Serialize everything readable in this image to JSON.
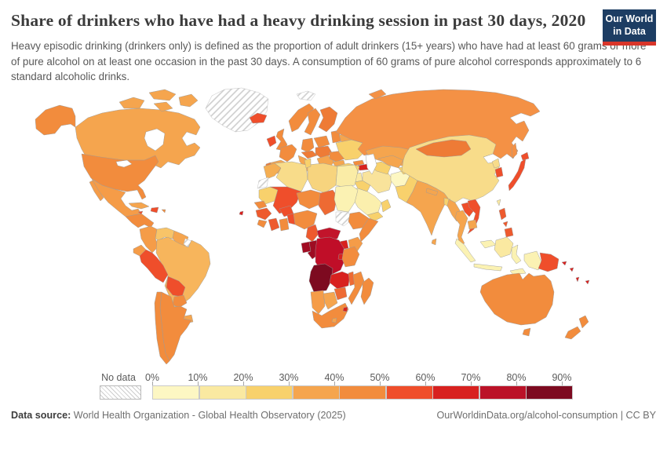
{
  "header": {
    "title": "Share of drinkers who have had a heavy drinking session in past 30 days, 2020",
    "subtitle": "Heavy episodic drinking (drinkers only) is defined as the proportion of adult drinkers (15+ years) who have had at least 60 grams or more of pure alcohol on at least one occasion in the past 30 days. A consumption of 60 grams of pure alcohol corresponds approximately to 6 standard alcoholic drinks.",
    "logo": {
      "line1": "Our World",
      "line2": "in Data",
      "bg_color": "#1d3d63",
      "accent_color": "#d8352a"
    }
  },
  "chart_data": {
    "type": "choropleth_map",
    "title": "Share of drinkers who have had a heavy drinking session in past 30 days",
    "year": "2020",
    "unit": "%",
    "legend": {
      "no_data_label": "No data",
      "tick_labels": [
        "0%",
        "10%",
        "20%",
        "30%",
        "40%",
        "50%",
        "60%",
        "70%",
        "80%",
        "90%"
      ],
      "bin_colors": [
        "#FDF7C3",
        "#FAE9A1",
        "#F8D16C",
        "#F5A54E",
        "#F28C3D",
        "#EF4E2B",
        "#D8211F",
        "#BB1228",
        "#7D0A20"
      ],
      "bin_ranges": [
        "0-10%",
        "10-20%",
        "20-30%",
        "30-40%",
        "40-50%",
        "50-60%",
        "60-70%",
        "70-80%",
        "80-90%"
      ]
    },
    "regions": {
      "greenland": "hatch",
      "svalbard": "hatch",
      "canada": "#F5A54E",
      "alaska": "#F28C3D",
      "usa": "#F28C3D",
      "mexico": "#F59C48",
      "camerica": "#F28C3D",
      "cuba": "#F5A54E",
      "hispaniola": "#EF4E2B",
      "jamaica": "#EF4E2B",
      "puertorico": "#F28C3D",
      "capeverde": "#D8211F",
      "colombia": "#F59C48",
      "venezuela": "#F8C468",
      "guyanas": "#F5A54E",
      "frenchguiana": "hatch",
      "ecuador": "#F59C48",
      "peru": "#EF4E2B",
      "brazil": "#F7B55C",
      "bolivia": "#EF4E2B",
      "paraguay": "#F28C3D",
      "uruguay": "#F5A54E",
      "argentina": "#F28C3D",
      "chile": "#F28C3D",
      "iceland": "#EF4E2B",
      "ireland": "#EF4E2B",
      "uk": "#F28C3D",
      "norway": "#F28C3D",
      "sweden": "#F28C3D",
      "finland": "#EE7B36",
      "denmark": "#F28C3D",
      "baltics": "#F28C3D",
      "belarus": "#F5A54E",
      "poland": "#F28C3D",
      "germany": "#F28C3D",
      "france": "#F28C3D",
      "spain": "#F5A54E",
      "portugal": "#EE7B36",
      "italy": "#F5A54E",
      "switzaustria": "#EE7B36",
      "czechhungary": "#EE7B36",
      "balkans": "#F5A54E",
      "greece": "#F8D16C",
      "romania": "#F28C3D",
      "bulgaria": "#F5A54E",
      "ukraine": "#F8D16C",
      "russia": "#F49145",
      "kazakhstan": "#F5A54E",
      "georgia": "#F28C3D",
      "azerbaijan": "#D8211F",
      "armenia": "#F5A54E",
      "turkey": "#F8D16C",
      "syria": "#FAE9A1",
      "iraq": "#F8D16C",
      "jordanisrael": "#FAE9A1",
      "saudi": "#FBEFAD",
      "yemen": "#F8D16C",
      "oman": "#F8D16C",
      "iran": "#F9E39B",
      "afghanistan": "#FDF7C3",
      "turkmen": "#F8D16C",
      "uzbek": "#F5A54E",
      "kyrgyztajik": "#F8D16C",
      "pakistan": "#F8D16C",
      "india": "#F5A54E",
      "nepal": "#F5A54E",
      "bangladesh": "#F8D16C",
      "srilanka": "#F5A54E",
      "china": "#F8DC8A",
      "mongolia": "#EE7B36",
      "taiwan": "#FAE9A1",
      "nkorea": "#F8DC8A",
      "skorea": "#EF4E2B",
      "japan": "#EF4E2B",
      "myanmar": "#F5A54E",
      "thailand": "#F5A54E",
      "laos": "#EF4E2B",
      "vietnam": "#EF4E2B",
      "cambodia": "#F5A54E",
      "malaysia": "#FBF2B3",
      "indonesia": "#FBF2B3",
      "borneo": "#FAE9A1",
      "philippines": "#EE5A2E",
      "png": "#EF4E2B",
      "solomons": "#D8211F",
      "vanuatufiji": "#D8211F",
      "australia": "#F28C3D",
      "tasmania": "#F28C3D",
      "nz": "#F28C3D",
      "morocco": "#F5AE52",
      "wsahara": "hatch",
      "algeria": "#F8DC8A",
      "tunisia": "#F8D16C",
      "libya": "#F7D47E",
      "egypt": "#FAECA6",
      "mauritania": "#F8D16C",
      "senegal": "#F28C3D",
      "guinea": "#EE5A2E",
      "sierraliberia": "#F28C3D",
      "ivorycoast": "#EE5A2E",
      "ghana": "#F28C3D",
      "togobenin": "#EF4E2B",
      "burkina": "#EF4E2B",
      "mali": "#EF4E2B",
      "niger": "#F28C3D",
      "nigeria": "#F28C3D",
      "chad": "#EE6A33",
      "sudan": "#FBF2B3",
      "ssudan": "hatch",
      "ethiopia": "#F28C3D",
      "somalia": "#F28C3D",
      "cameroon": "#EE5A2E",
      "car": "#C2142B",
      "uganda": "#D8211F",
      "kenya": "#F59C48",
      "gabon": "#A10C23",
      "congo": "#9E0C22",
      "drc": "#C00E28",
      "rwandaburundi": "#D8211F",
      "tanzania": "#F28C3D",
      "angola": "#7D0A20",
      "zambia": "#D8211F",
      "malawi": "#EE6A33",
      "mozambique": "#F28C3D",
      "zimbabwe": "#EE6A33",
      "namibia": "#F59C48",
      "botswana": "#F5A54E",
      "southafrica": "#F28C3D",
      "eswatini": "#D8211F",
      "lesotho": "#F5A54E",
      "madagascar": "#F28C3D"
    }
  },
  "footer": {
    "source_label": "Data source:",
    "source_text": " World Health Organization - Global Health Observatory (2025)",
    "right_text": "OurWorldinData.org/alcohol-consumption | CC BY"
  }
}
